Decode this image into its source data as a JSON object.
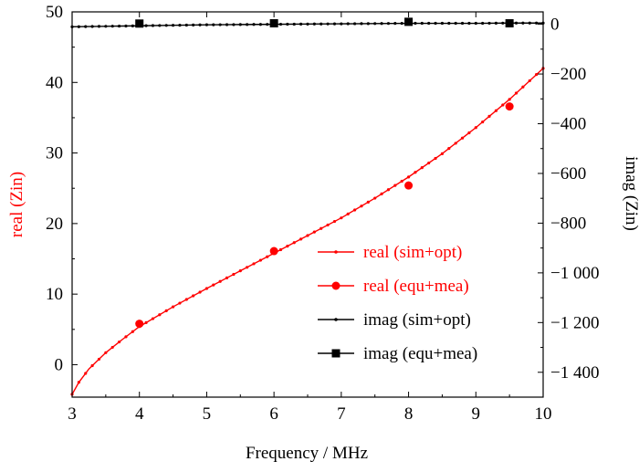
{
  "chart_data": {
    "type": "line",
    "xlabel": "Frequency / MHz",
    "ylabel_left": "real (Zin)",
    "ylabel_right": "imag (Zin)",
    "xlim": [
      3,
      10
    ],
    "ylim_left": [
      -4.6,
      50
    ],
    "ylim_right": [
      -1500,
      50
    ],
    "x_ticks": [
      3,
      4,
      5,
      6,
      7,
      8,
      9,
      10
    ],
    "x_tick_labels": [
      "3",
      "4",
      "5",
      "6",
      "7",
      "8",
      "9",
      "10"
    ],
    "y_left_ticks": [
      0,
      10,
      20,
      30,
      40,
      50
    ],
    "y_left_tick_labels": [
      "0",
      "10",
      "20",
      "30",
      "40",
      "50"
    ],
    "y_right_ticks": [
      0,
      -200,
      -400,
      -600,
      -800,
      -1000,
      -1200,
      -1400
    ],
    "y_right_tick_labels": [
      "0",
      "−200",
      "−400",
      "−600",
      "−800",
      "−1 000",
      "−1 200",
      "−1 400"
    ],
    "colors": {
      "real": "#ff0000",
      "imag": "#000000",
      "axis": "#000000"
    },
    "series": [
      {
        "name": "real (sim+opt)",
        "axis": "left",
        "style": "line-dots",
        "color": "#ff0000",
        "x": [
          3.0,
          3.1,
          3.25,
          3.5,
          3.75,
          4.0,
          4.5,
          5.0,
          5.5,
          6.0,
          6.5,
          7.0,
          7.5,
          8.0,
          8.5,
          9.0,
          9.5,
          10.0
        ],
        "values": [
          -4.2,
          -2.5,
          -0.6,
          1.7,
          3.6,
          5.4,
          8.2,
          10.8,
          13.3,
          15.8,
          18.3,
          20.8,
          23.6,
          26.6,
          29.9,
          33.6,
          37.6,
          42.0
        ]
      },
      {
        "name": "real (equ+mea)",
        "axis": "left",
        "style": "markers-circle",
        "color": "#ff0000",
        "x": [
          4,
          6,
          8,
          9.5
        ],
        "values": [
          5.8,
          16.1,
          25.4,
          36.6
        ]
      },
      {
        "name": "imag (sim+opt)",
        "axis": "right",
        "style": "line-dots",
        "color": "#000000",
        "x": [
          3.0,
          3.5,
          4.0,
          4.5,
          5.0,
          5.5,
          6.0,
          6.5,
          7.0,
          7.5,
          8.0,
          8.5,
          9.0,
          9.5,
          10.0
        ],
        "values": [
          -10,
          -8,
          -6,
          -4,
          -2,
          -1,
          0,
          1,
          2,
          3,
          4,
          4,
          4,
          5,
          5
        ]
      },
      {
        "name": "imag (equ+mea)",
        "axis": "right",
        "style": "markers-square",
        "color": "#000000",
        "x": [
          4,
          6,
          8,
          9.5
        ],
        "values": [
          3,
          4,
          10,
          4
        ]
      }
    ],
    "legend": {
      "position": "center-right",
      "entries": [
        "real (sim+opt)",
        "real (equ+mea)",
        "imag (sim+opt)",
        "imag (equ+mea)"
      ]
    }
  }
}
